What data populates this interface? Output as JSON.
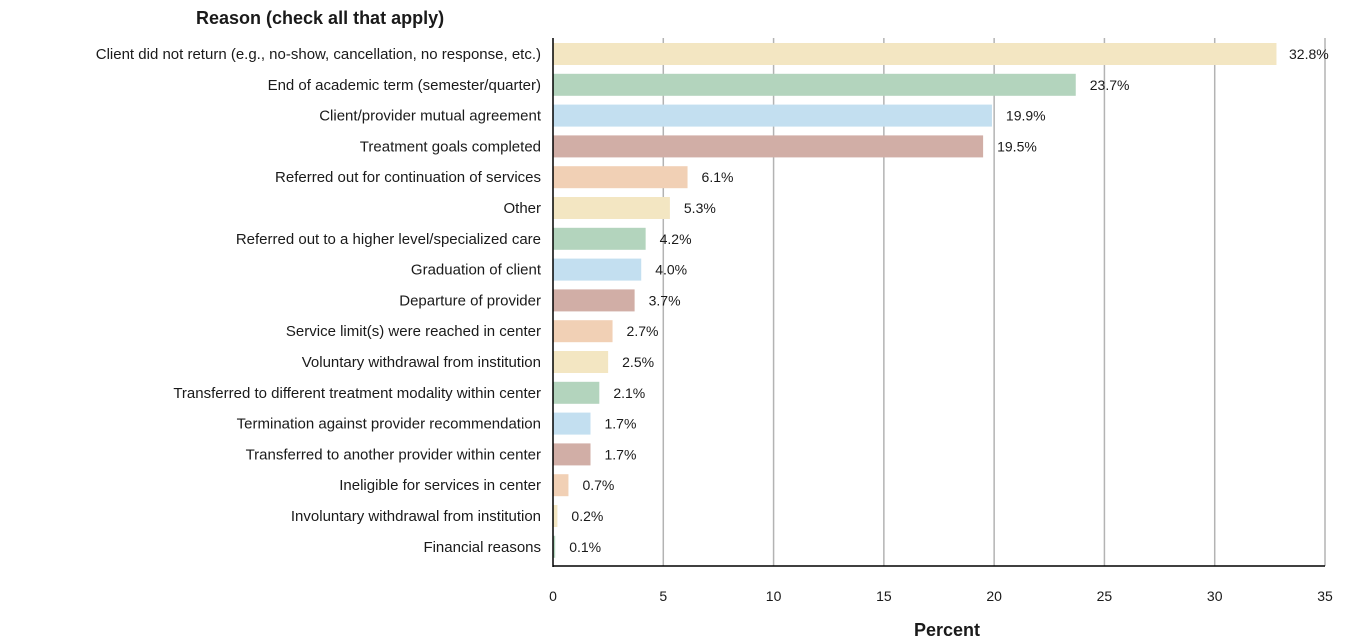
{
  "chart_data": {
    "type": "bar",
    "orientation": "horizontal",
    "title": "Reason (check all that apply)",
    "xlabel": "Percent",
    "ylabel": "",
    "xlim": [
      0,
      35
    ],
    "xticks": [
      0,
      5,
      10,
      15,
      20,
      25,
      30,
      35
    ],
    "grid": "vertical",
    "legend": "none",
    "categories": [
      "Client did not return (e.g., no-show, cancellation, no response, etc.)",
      "End of academic term (semester/quarter)",
      "Client/provider mutual agreement",
      "Treatment goals completed",
      "Referred out for continuation of services",
      "Other",
      "Referred out to a higher level/specialized care",
      "Graduation of client",
      "Departure of provider",
      "Service limit(s) were reached in center",
      "Voluntary withdrawal from institution",
      "Transferred to different treatment modality within center",
      "Termination against provider recommendation",
      "Transferred to another provider within center",
      "Ineligible for services in center",
      "Involuntary withdrawal from institution",
      "Financial reasons"
    ],
    "values": [
      32.8,
      23.7,
      19.9,
      19.5,
      6.1,
      5.3,
      4.2,
      4.0,
      3.7,
      2.7,
      2.5,
      2.1,
      1.7,
      1.7,
      0.7,
      0.2,
      0.1
    ],
    "value_labels": [
      "32.8%",
      "23.7%",
      "19.9%",
      "19.5%",
      "6.1%",
      "5.3%",
      "4.2%",
      "4.0%",
      "3.7%",
      "2.7%",
      "2.5%",
      "2.1%",
      "1.7%",
      "1.7%",
      "0.7%",
      "0.2%",
      "0.1%"
    ],
    "colors": [
      "#f3e6c2",
      "#b3d4bd",
      "#c3dff0",
      "#d1aea6",
      "#f1d0b5"
    ],
    "grid_color": "#b3b3b3",
    "axis_color": "#000000"
  }
}
